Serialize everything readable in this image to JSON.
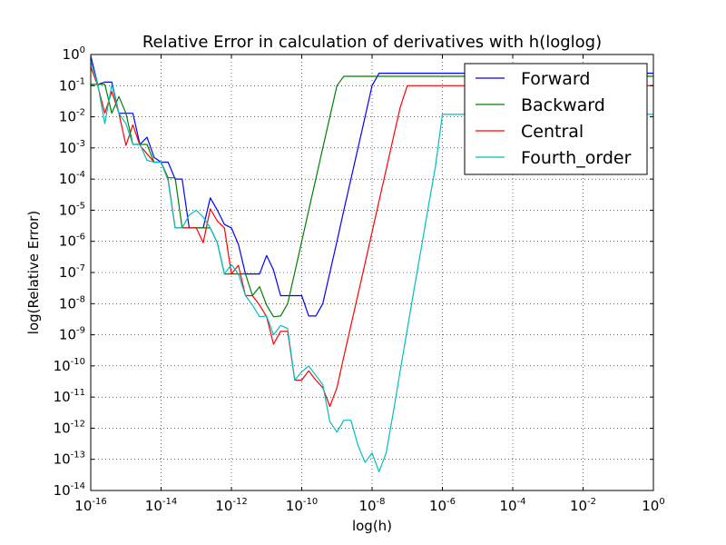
{
  "chart_data": {
    "type": "line",
    "title": "Relative Error in calculation of derivatives with h(loglog)",
    "xlabel": "log(h)",
    "ylabel": "log(Relative Error)",
    "xscale": "log",
    "yscale": "log",
    "xlim": [
      1e-16,
      1
    ],
    "ylim": [
      1e-14,
      1
    ],
    "grid": true,
    "legend_position": "top-right",
    "x_tick_labels": [
      {
        "base": "10",
        "exp": "-16",
        "value": 1e-16
      },
      {
        "base": "10",
        "exp": "-14",
        "value": 1e-14
      },
      {
        "base": "10",
        "exp": "-12",
        "value": 1e-12
      },
      {
        "base": "10",
        "exp": "-10",
        "value": 1e-10
      },
      {
        "base": "10",
        "exp": "-8",
        "value": 1e-08
      },
      {
        "base": "10",
        "exp": "-6",
        "value": 1e-06
      },
      {
        "base": "10",
        "exp": "-4",
        "value": 0.0001
      },
      {
        "base": "10",
        "exp": "-2",
        "value": 0.01
      },
      {
        "base": "10",
        "exp": "0",
        "value": 1
      }
    ],
    "y_tick_labels": [
      {
        "base": "10",
        "exp": "0",
        "value": 1
      },
      {
        "base": "10",
        "exp": "-1",
        "value": 0.1
      },
      {
        "base": "10",
        "exp": "-2",
        "value": 0.01
      },
      {
        "base": "10",
        "exp": "-3",
        "value": 0.001
      },
      {
        "base": "10",
        "exp": "-4",
        "value": 0.0001
      },
      {
        "base": "10",
        "exp": "-5",
        "value": 1e-05
      },
      {
        "base": "10",
        "exp": "-6",
        "value": 1e-06
      },
      {
        "base": "10",
        "exp": "-7",
        "value": 1e-07
      },
      {
        "base": "10",
        "exp": "-8",
        "value": 1e-08
      },
      {
        "base": "10",
        "exp": "-9",
        "value": 1e-09
      },
      {
        "base": "10",
        "exp": "-10",
        "value": 1e-10
      },
      {
        "base": "10",
        "exp": "-11",
        "value": 1e-11
      },
      {
        "base": "10",
        "exp": "-12",
        "value": 1e-12
      },
      {
        "base": "10",
        "exp": "-13",
        "value": 1e-13
      },
      {
        "base": "10",
        "exp": "-14",
        "value": 1e-14
      }
    ],
    "series": [
      {
        "name": "Forward",
        "color": "#0000ff",
        "x": [
          1e-16,
          1.58e-16,
          2.51e-16,
          3.98e-16,
          6.31e-16,
          1e-15,
          1.58e-15,
          2.51e-15,
          3.98e-15,
          6.31e-15,
          1e-14,
          1.58e-14,
          2.51e-14,
          3.98e-14,
          6.31e-14,
          1e-13,
          1.58e-13,
          2.51e-13,
          3.98e-13,
          6.31e-13,
          1e-12,
          1.58e-12,
          2.51e-12,
          3.98e-12,
          6.31e-12,
          1e-11,
          1.58e-11,
          2.51e-11,
          3.98e-11,
          6.31e-11,
          1e-10,
          1.58e-10,
          2.51e-10,
          3.98e-10,
          6.31e-10,
          1e-09,
          1.58e-09,
          2.51e-09,
          3.98e-09,
          6.31e-09,
          1e-08,
          1.58e-08,
          1e-07,
          1e-06,
          1e-05,
          0.0001,
          0.001,
          0.01,
          0.1,
          0.6,
          1
        ],
        "y": [
          0.9,
          0.11,
          0.13,
          0.13,
          0.013,
          0.013,
          0.013,
          0.0013,
          0.0022,
          0.0005,
          0.00035,
          0.00035,
          0.0001,
          0.0001,
          2.7e-06,
          2.7e-06,
          2.7e-06,
          2.5e-05,
          1e-05,
          3.5e-06,
          2.7e-06,
          8e-07,
          9e-08,
          9e-08,
          9e-08,
          3.5e-07,
          1.2e-07,
          1.8e-08,
          1.8e-08,
          1.8e-08,
          1.8e-08,
          4e-09,
          4e-09,
          1e-08,
          1e-07,
          1e-06,
          1e-05,
          0.0001,
          0.001,
          0.01,
          0.1,
          0.25,
          0.25,
          0.25,
          0.25,
          0.25,
          0.25,
          0.25,
          0.25,
          0.25,
          0.25
        ]
      },
      {
        "name": "Backward",
        "color": "#008000",
        "x": [
          1e-16,
          1.58e-16,
          2.51e-16,
          3.98e-16,
          6.31e-16,
          1e-15,
          1.58e-15,
          2.51e-15,
          3.98e-15,
          6.31e-15,
          1e-14,
          1.58e-14,
          2.51e-14,
          3.98e-14,
          6.31e-14,
          1e-13,
          1.58e-13,
          2.51e-13,
          3.98e-13,
          6.31e-13,
          1e-12,
          1.58e-12,
          2.51e-12,
          3.98e-12,
          6.31e-12,
          1e-11,
          1.58e-11,
          2.51e-11,
          3.98e-11,
          6.31e-11,
          1e-10,
          1.58e-10,
          2.51e-10,
          3.98e-10,
          6.31e-10,
          1e-09,
          1.58e-09,
          2.51e-09,
          3.98e-09,
          6.31e-09,
          1e-08,
          1.58e-08,
          1e-07,
          1e-06,
          1e-05,
          0.0001,
          0.001,
          0.01,
          0.1,
          0.6,
          1
        ],
        "y": [
          0.11,
          0.11,
          0.11,
          0.013,
          0.045,
          0.013,
          0.0013,
          0.0013,
          0.0013,
          0.00035,
          0.00035,
          0.00011,
          0.00011,
          2.7e-06,
          2.7e-06,
          2.7e-06,
          2.7e-06,
          2.7e-06,
          9e-07,
          9e-08,
          9e-08,
          9e-08,
          9e-08,
          1.8e-08,
          3.5e-08,
          9e-09,
          3.8e-09,
          4e-09,
          1e-08,
          1e-07,
          1e-06,
          1e-05,
          0.0001,
          0.001,
          0.01,
          0.1,
          0.2,
          0.2,
          0.2,
          0.2,
          0.2,
          0.2,
          0.2,
          0.2,
          0.2,
          0.2,
          0.2,
          0.2,
          0.2,
          0.2,
          0.2
        ]
      },
      {
        "name": "Central",
        "color": "#ff0000",
        "x": [
          1e-16,
          1.58e-16,
          2.51e-16,
          3.98e-16,
          6.31e-16,
          1e-15,
          1.58e-15,
          2.51e-15,
          3.98e-15,
          6.31e-15,
          1e-14,
          1.58e-14,
          2.51e-14,
          3.98e-14,
          6.31e-14,
          1e-13,
          1.58e-13,
          2.51e-13,
          3.98e-13,
          6.31e-13,
          1e-12,
          1.58e-12,
          2.51e-12,
          3.98e-12,
          6.31e-12,
          1e-11,
          1.58e-11,
          2.51e-11,
          3.98e-11,
          6.31e-11,
          1e-10,
          1.58e-10,
          2.51e-10,
          3.98e-10,
          6.31e-10,
          1e-09,
          1.58e-09,
          2.51e-09,
          3.98e-09,
          6.31e-09,
          1e-08,
          1.58e-08,
          2.51e-08,
          3.98e-08,
          6.31e-08,
          1e-07,
          1.58e-07,
          2.51e-07,
          3.98e-07,
          1e-06,
          1e-05,
          0.0001,
          0.001,
          0.01,
          0.1,
          1
        ],
        "y": [
          0.4,
          0.1,
          0.013,
          0.065,
          0.013,
          0.0012,
          0.0055,
          0.0012,
          0.00065,
          0.00035,
          0.00035,
          0.0001,
          2.7e-06,
          2.7e-06,
          2.7e-06,
          2.7e-06,
          9e-07,
          1.1e-05,
          4.5e-06,
          2.7e-06,
          9e-08,
          1.7e-07,
          1.8e-08,
          1.8e-08,
          9e-09,
          3.8e-09,
          5e-10,
          1.3e-09,
          1.3e-09,
          3.5e-11,
          3.5e-11,
          7e-11,
          3.5e-11,
          2e-11,
          5e-12,
          2e-11,
          2e-10,
          2e-09,
          2e-08,
          2e-07,
          2e-06,
          2e-05,
          0.0002,
          0.002,
          0.02,
          0.1,
          0.1,
          0.1,
          0.1,
          0.1,
          0.1,
          0.1,
          0.1,
          0.1,
          0.1,
          0.1
        ]
      },
      {
        "name": "Fourth_order",
        "color": "#00bfbf",
        "x": [
          1e-16,
          1.58e-16,
          2.51e-16,
          3.98e-16,
          6.31e-16,
          1e-15,
          1.58e-15,
          2.51e-15,
          3.98e-15,
          6.31e-15,
          1e-14,
          1.58e-14,
          2.51e-14,
          3.98e-14,
          6.31e-14,
          1e-13,
          1.58e-13,
          2.51e-13,
          3.98e-13,
          6.31e-13,
          1e-12,
          1.58e-12,
          2.51e-12,
          3.98e-12,
          6.31e-12,
          1e-11,
          1.58e-11,
          2.51e-11,
          3.98e-11,
          6.31e-11,
          1e-10,
          1.58e-10,
          2.51e-10,
          3.98e-10,
          6.31e-10,
          1e-09,
          1.58e-09,
          2.51e-09,
          3.98e-09,
          6.31e-09,
          1e-08,
          1.58e-08,
          2.51e-08,
          3.98e-08,
          6.31e-08,
          1e-07,
          1.58e-07,
          2.51e-07,
          3.98e-07,
          6.31e-07,
          1e-06,
          1.58e-06,
          2.51e-06,
          3.98e-06,
          6.31e-06,
          1e-05,
          1.58e-05,
          2.51e-05,
          3.98e-05,
          6.31e-05,
          0.0001,
          0.000158,
          0.000251,
          0.000398,
          0.000631,
          0.001,
          0.00158,
          0.01,
          0.1,
          1
        ],
        "y": [
          0.6,
          0.11,
          0.006,
          0.11,
          0.013,
          0.006,
          0.0013,
          0.0013,
          0.0004,
          0.00035,
          0.00035,
          9e-05,
          2.7e-06,
          2.7e-06,
          7e-06,
          1e-05,
          6e-06,
          2.7e-06,
          9e-07,
          9e-08,
          1.8e-07,
          9e-08,
          1.8e-08,
          9e-09,
          3.8e-09,
          4e-09,
          1e-09,
          2e-09,
          1.6e-09,
          3.5e-11,
          6.5e-11,
          1e-10,
          5e-11,
          2.5e-11,
          1.6e-12,
          7.5e-13,
          1.8e-12,
          1.8e-12,
          2.8e-13,
          8e-14,
          1.6e-13,
          4e-14,
          1.6e-13,
          3e-12,
          7e-11,
          1.5e-09,
          3e-08,
          6e-07,
          1.3e-05,
          0.00025,
          0.012,
          0.012,
          0.012,
          0.012,
          0.012,
          0.012,
          0.012,
          0.012,
          0.012,
          0.012,
          0.012,
          0.012,
          0.012,
          0.012,
          0.012,
          0.012,
          0.012,
          0.012,
          0.012,
          0.012
        ]
      }
    ]
  }
}
